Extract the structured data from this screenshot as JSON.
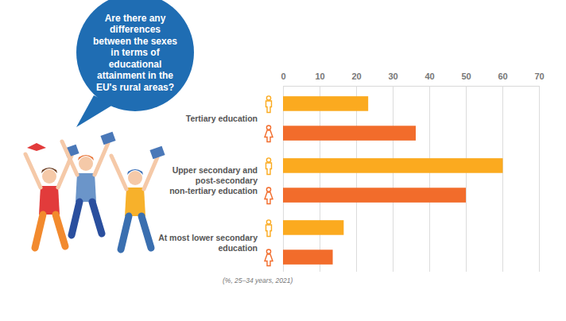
{
  "chart_data": {
    "type": "bar",
    "orientation": "horizontal",
    "title": "Are there any differences between the sexes in terms of educational attainment in the EU's rural areas?",
    "annotations": [
      "(%, 25–34 years, 2021)"
    ],
    "categories": [
      "Tertiary education",
      "Upper secondary and post-secondary non-tertiary education",
      "At most lower secondary education"
    ],
    "series": [
      {
        "color": "#fbaa1f",
        "values": [
          23.3,
          60.1,
          16.6
        ]
      },
      {
        "color": "#f26c2b",
        "values": [
          36.3,
          50.0,
          13.6
        ]
      }
    ],
    "xlim": [
      0,
      70
    ],
    "xticks": [
      0,
      10,
      20,
      30,
      40,
      50,
      60,
      70
    ],
    "grid": true
  }
}
